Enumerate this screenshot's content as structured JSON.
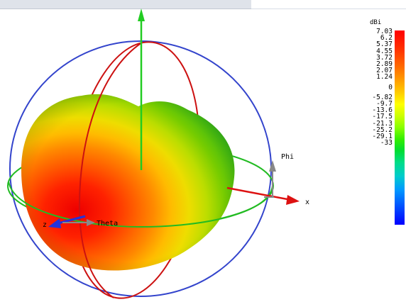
{
  "axes": {
    "x_label": "x",
    "z_label": "z",
    "theta_label": "Theta",
    "phi_label": "Phi"
  },
  "legend": {
    "unit": "dBi",
    "ticks": [
      "7.03",
      "6.2",
      "5.37",
      "4.55",
      "3.72",
      "2.89",
      "2.07",
      "1.24",
      "0",
      "-5.82",
      "-9.7",
      "-13.6",
      "-17.5",
      "-21.3",
      "-25.2",
      "-29.1",
      "-33"
    ]
  },
  "colors": {
    "x_axis": "#dd1111",
    "y_axis": "#22cc22",
    "z_axis": "#2233dd",
    "theta_arc": "#cc1111",
    "phi_arc": "#3344cc",
    "equator_ring": "#22bb22",
    "gray_arrows": "#888888",
    "pattern_max": "#ff0000",
    "pattern_min": "#22aa22"
  }
}
